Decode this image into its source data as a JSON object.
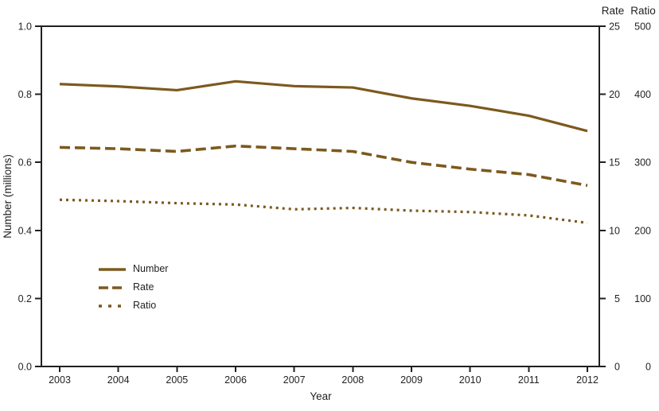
{
  "chart_data": {
    "type": "line",
    "x": [
      2003,
      2004,
      2005,
      2006,
      2007,
      2008,
      2009,
      2010,
      2011,
      2012
    ],
    "series": [
      {
        "name": "Number",
        "axis": "left",
        "style": "solid",
        "values": [
          0.83,
          0.823,
          0.812,
          0.838,
          0.824,
          0.82,
          0.788,
          0.766,
          0.737,
          0.692
        ]
      },
      {
        "name": "Rate",
        "axis": "right_rate",
        "style": "dashed",
        "values": [
          16.1,
          16.0,
          15.8,
          16.2,
          16.0,
          15.8,
          15.0,
          14.5,
          14.1,
          13.3
        ]
      },
      {
        "name": "Ratio",
        "axis": "right_ratio",
        "style": "dotted",
        "values": [
          245,
          243,
          240,
          238,
          231,
          233,
          229,
          227,
          222,
          211
        ]
      }
    ],
    "axes": {
      "left": {
        "label": "Number (millions)",
        "min": 0,
        "max": 1.0,
        "ticks": [
          "1.0",
          "0.8",
          "0.6",
          "0.4",
          "0.2",
          "0.0"
        ]
      },
      "right_rate": {
        "label": "Rate",
        "min": 0,
        "max": 25,
        "ticks": [
          "25",
          "20",
          "15",
          "10",
          "5",
          "0"
        ]
      },
      "right_ratio": {
        "label": "Ratio",
        "min": 0,
        "max": 500,
        "ticks": [
          "500",
          "400",
          "300",
          "200",
          "100",
          "0"
        ]
      },
      "x": {
        "label": "Year"
      }
    },
    "legend": [
      {
        "label": "Number",
        "style": "solid"
      },
      {
        "label": "Rate",
        "style": "dashed"
      },
      {
        "label": "Ratio",
        "style": "dotted"
      }
    ],
    "legend_position": "inside-lower-left",
    "grid": false,
    "line_color": "#7c591e",
    "axis_color": "#231f20"
  }
}
